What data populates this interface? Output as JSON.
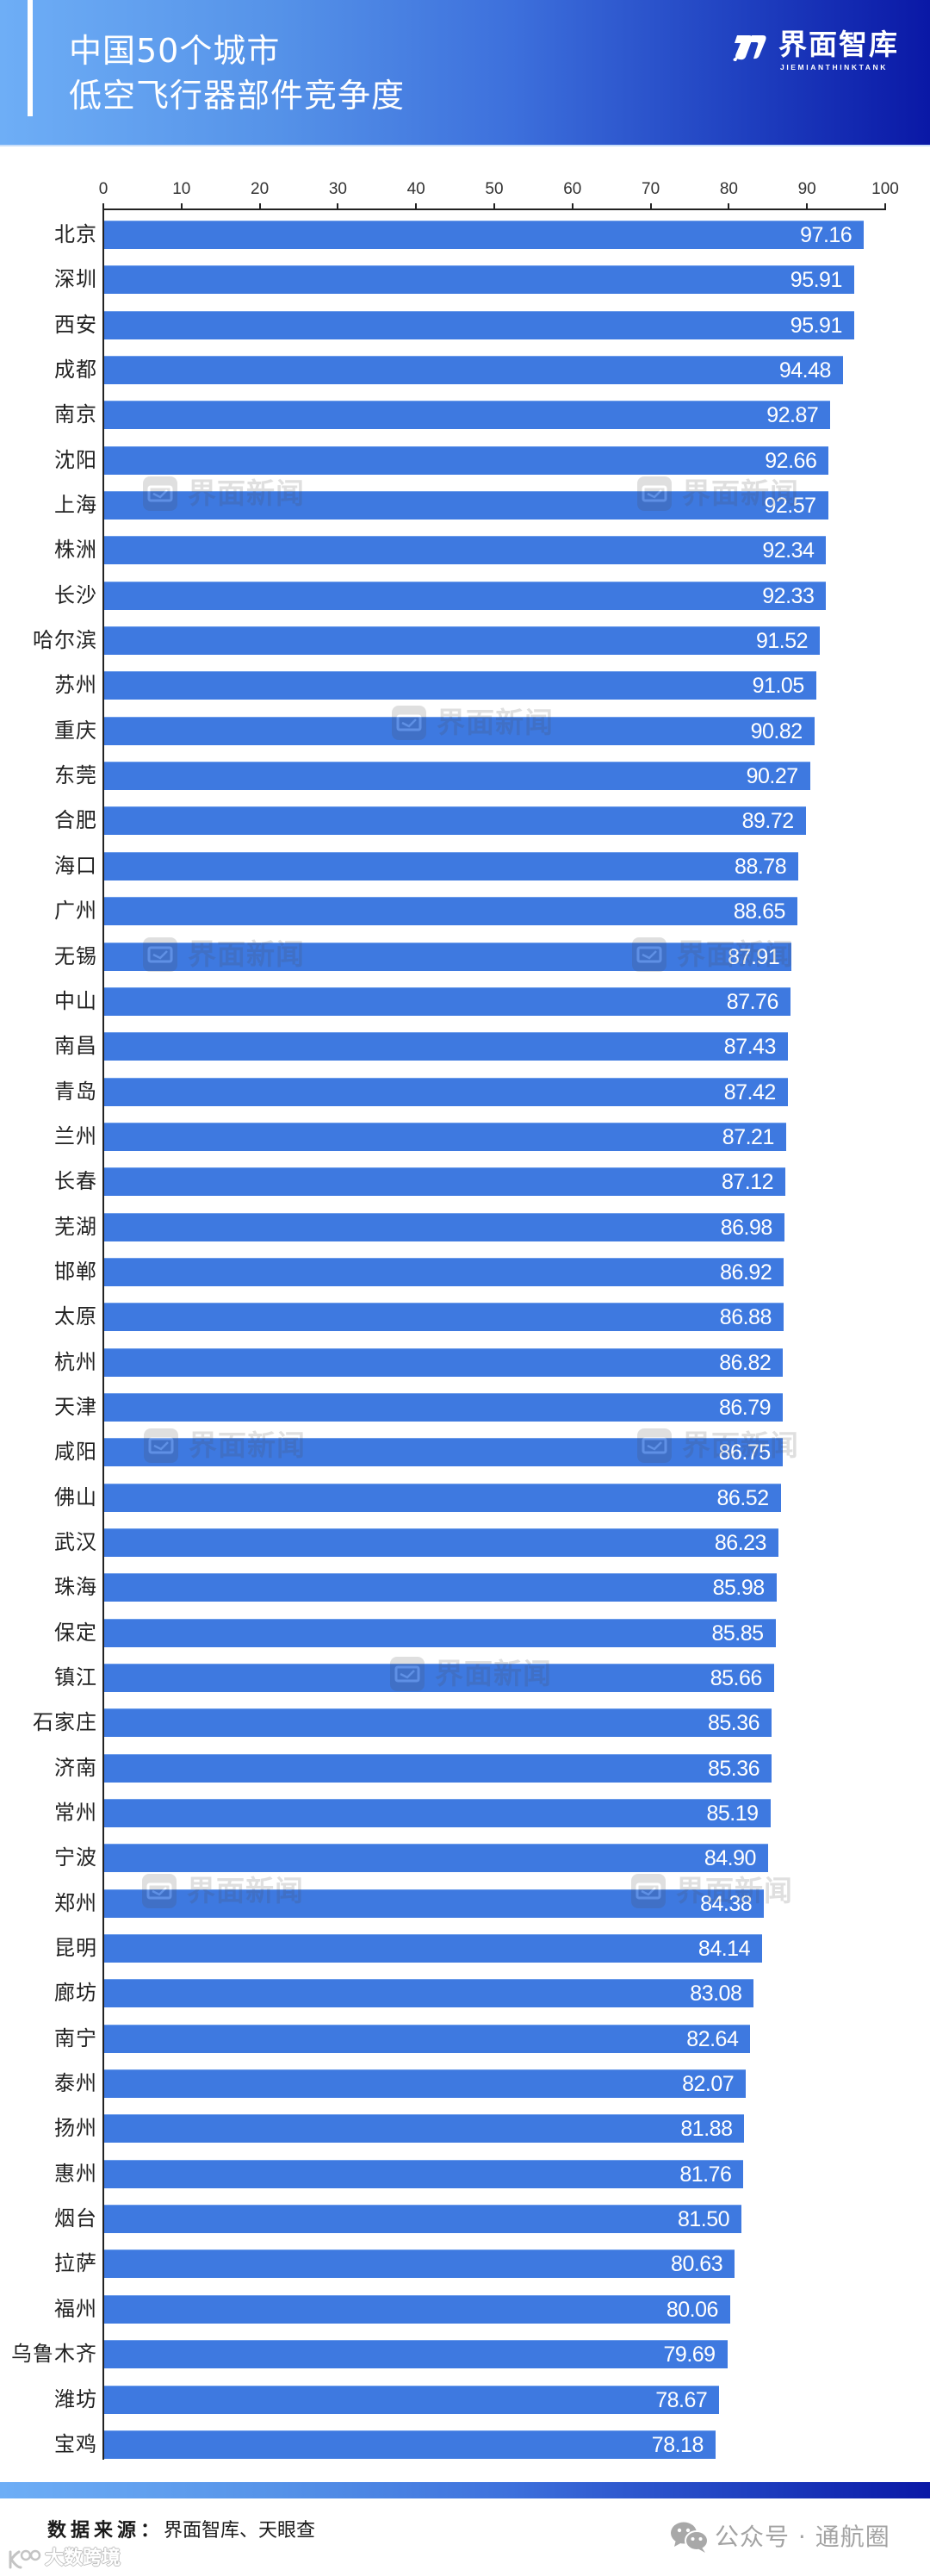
{
  "header": {
    "title_line1": "中国50个城市",
    "title_line2": "低空飞行器部件竞争度",
    "logo_text": "界面智库",
    "logo_subtext": "JIEMIANTHINKTANK",
    "logo_icon": "jiemian-think-tank-logo-icon"
  },
  "chart_data": {
    "type": "bar",
    "orientation": "horizontal",
    "title": "中国50个城市低空飞行器部件竞争度",
    "xlabel": "",
    "ylabel": "",
    "xlim": [
      0,
      100
    ],
    "xticks": [
      0,
      10,
      20,
      30,
      40,
      50,
      60,
      70,
      80,
      90,
      100
    ],
    "x_axis_position": "top",
    "grid": false,
    "legend": null,
    "bar_color": "#3e79e0",
    "categories": [
      "北京",
      "深圳",
      "西安",
      "成都",
      "南京",
      "沈阳",
      "上海",
      "株洲",
      "长沙",
      "哈尔滨",
      "苏州",
      "重庆",
      "东莞",
      "合肥",
      "海口",
      "广州",
      "无锡",
      "中山",
      "南昌",
      "青岛",
      "兰州",
      "长春",
      "芜湖",
      "邯郸",
      "太原",
      "杭州",
      "天津",
      "咸阳",
      "佛山",
      "武汉",
      "珠海",
      "保定",
      "镇江",
      "石家庄",
      "济南",
      "常州",
      "宁波",
      "郑州",
      "昆明",
      "廊坊",
      "南宁",
      "泰州",
      "扬州",
      "惠州",
      "烟台",
      "拉萨",
      "福州",
      "乌鲁木齐",
      "潍坊",
      "宝鸡"
    ],
    "values": [
      97.16,
      95.91,
      95.91,
      94.48,
      92.87,
      92.66,
      92.57,
      92.34,
      92.33,
      91.52,
      91.05,
      90.82,
      90.27,
      89.72,
      88.78,
      88.65,
      87.91,
      87.76,
      87.43,
      87.42,
      87.21,
      87.12,
      86.98,
      86.92,
      86.88,
      86.82,
      86.79,
      86.75,
      86.52,
      86.23,
      85.98,
      85.85,
      85.66,
      85.36,
      85.36,
      85.19,
      84.9,
      84.38,
      84.14,
      83.08,
      82.64,
      82.07,
      81.88,
      81.76,
      81.5,
      80.63,
      80.06,
      79.69,
      78.67,
      78.18
    ],
    "value_labels": [
      "97.16",
      "95.91",
      "95.91",
      "94.48",
      "92.87",
      "92.66",
      "92.57",
      "92.34",
      "92.33",
      "91.52",
      "91.05",
      "90.82",
      "90.27",
      "89.72",
      "88.78",
      "88.65",
      "87.91",
      "87.76",
      "87.43",
      "87.42",
      "87.21",
      "87.12",
      "86.98",
      "86.92",
      "86.88",
      "86.82",
      "86.79",
      "86.75",
      "86.52",
      "86.23",
      "85.98",
      "85.85",
      "85.66",
      "85.36",
      "85.36",
      "85.19",
      "84.90",
      "84.38",
      "84.14",
      "83.08",
      "82.64",
      "82.07",
      "81.88",
      "81.76",
      "81.50",
      "80.63",
      "80.06",
      "79.69",
      "78.67",
      "78.18"
    ]
  },
  "watermark": {
    "text": "界面新闻",
    "icon": "jiemian-news-icon"
  },
  "footer": {
    "source_label": "数据来源：",
    "source_value": "界面智库、天眼查",
    "wechat_account": "公众号 · 通航圈",
    "wechat_icon": "wechat-icon",
    "corner_watermark": "大数跨境"
  },
  "colors": {
    "header_gradient_start": "#6eaef6",
    "header_gradient_end": "#0a18a6",
    "bar": "#3e79e0",
    "value_label": "#ffffff",
    "axis": "#222222"
  }
}
